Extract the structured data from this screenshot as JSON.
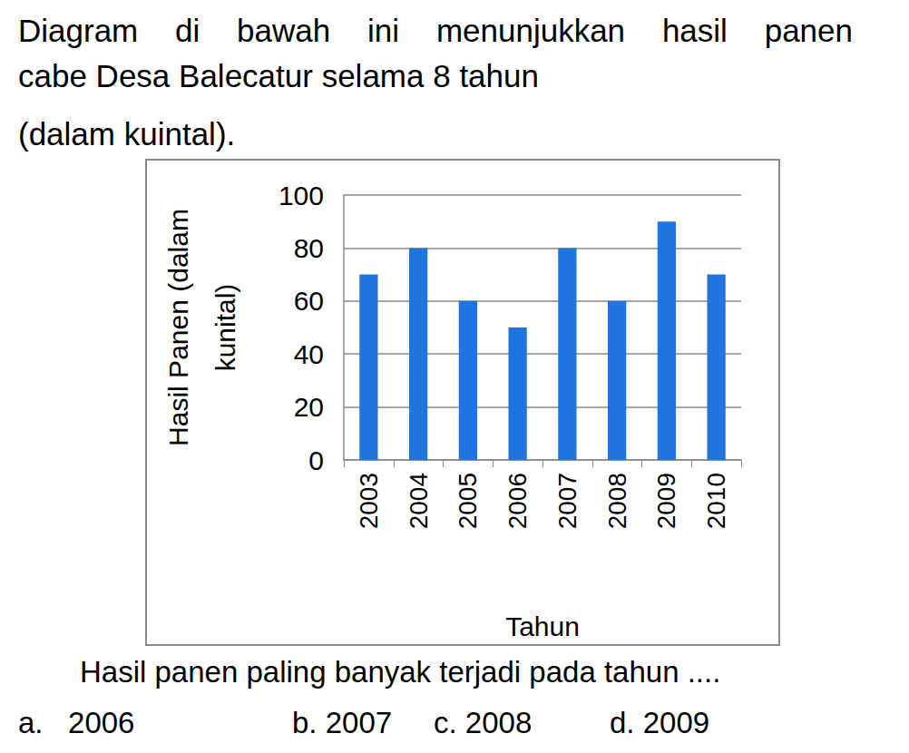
{
  "text": {
    "intro": [
      "Diagram di bawah ini menunjukkan hasil panen",
      "cabe Desa Balecatur selama 8 tahun",
      "(dalam kuintal)."
    ],
    "question": "Hasil panen paling banyak terjadi pada tahun ....",
    "options": [
      [
        "a.",
        "2006"
      ],
      [
        "b.",
        "2007"
      ],
      [
        "c.",
        "2008"
      ],
      [
        "d.",
        "2009"
      ]
    ]
  },
  "chart_data": {
    "type": "bar",
    "categories": [
      "2003",
      "2004",
      "2005",
      "2006",
      "2007",
      "2008",
      "2009",
      "2010"
    ],
    "values": [
      70,
      80,
      60,
      50,
      80,
      60,
      90,
      70
    ],
    "color": "#1f74e0",
    "x_label": "Tahun",
    "y_label": "Hasil Panen (dalam\nkunital)",
    "ylim": [
      0,
      100
    ],
    "yticks": [
      0,
      20,
      40,
      60,
      80,
      100
    ],
    "grid": true
  }
}
